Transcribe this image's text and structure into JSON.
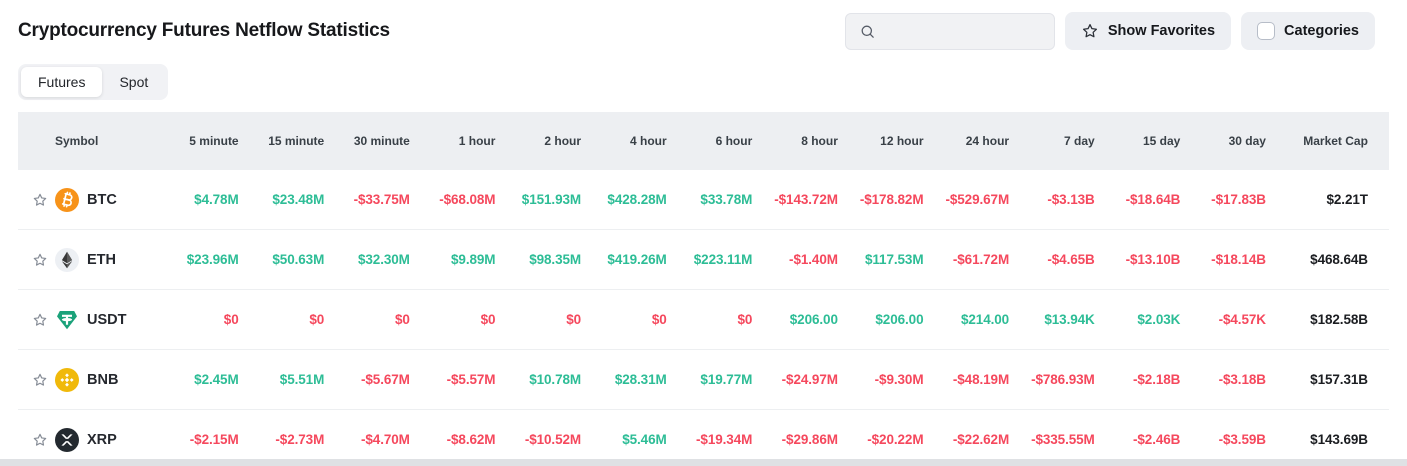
{
  "page": {
    "title": "Cryptocurrency Futures Netflow Statistics"
  },
  "toolbar": {
    "search_placeholder": "",
    "show_favorites_label": "Show Favorites",
    "categories_label": "Categories",
    "icons": [
      "search-icon",
      "star-icon",
      "checkbox"
    ]
  },
  "tabs": [
    {
      "label": "Futures",
      "active": true
    },
    {
      "label": "Spot",
      "active": false
    }
  ],
  "table": {
    "columns": [
      "Symbol",
      "5 minute",
      "15 minute",
      "30 minute",
      "1 hour",
      "2 hour",
      "4 hour",
      "6 hour",
      "8 hour",
      "12 hour",
      "24 hour",
      "7 day",
      "15 day",
      "30 day",
      "Market Cap"
    ],
    "rows": [
      {
        "symbol": "BTC",
        "icon": "btc-icon",
        "cells": [
          {
            "text": "$4.78M",
            "dir": "up"
          },
          {
            "text": "$23.48M",
            "dir": "up"
          },
          {
            "text": "-$33.75M",
            "dir": "down"
          },
          {
            "text": "-$68.08M",
            "dir": "down"
          },
          {
            "text": "$151.93M",
            "dir": "up"
          },
          {
            "text": "$428.28M",
            "dir": "up"
          },
          {
            "text": "$33.78M",
            "dir": "up"
          },
          {
            "text": "-$143.72M",
            "dir": "down"
          },
          {
            "text": "-$178.82M",
            "dir": "down"
          },
          {
            "text": "-$529.67M",
            "dir": "down"
          },
          {
            "text": "-$3.13B",
            "dir": "down"
          },
          {
            "text": "-$18.64B",
            "dir": "down"
          },
          {
            "text": "-$17.83B",
            "dir": "down"
          }
        ],
        "market_cap": "$2.21T"
      },
      {
        "symbol": "ETH",
        "icon": "eth-icon",
        "cells": [
          {
            "text": "$23.96M",
            "dir": "up"
          },
          {
            "text": "$50.63M",
            "dir": "up"
          },
          {
            "text": "$32.30M",
            "dir": "up"
          },
          {
            "text": "$9.89M",
            "dir": "up"
          },
          {
            "text": "$98.35M",
            "dir": "up"
          },
          {
            "text": "$419.26M",
            "dir": "up"
          },
          {
            "text": "$223.11M",
            "dir": "up"
          },
          {
            "text": "-$1.40M",
            "dir": "down"
          },
          {
            "text": "$117.53M",
            "dir": "up"
          },
          {
            "text": "-$61.72M",
            "dir": "down"
          },
          {
            "text": "-$4.65B",
            "dir": "down"
          },
          {
            "text": "-$13.10B",
            "dir": "down"
          },
          {
            "text": "-$18.14B",
            "dir": "down"
          }
        ],
        "market_cap": "$468.64B"
      },
      {
        "symbol": "USDT",
        "icon": "usdt-icon",
        "cells": [
          {
            "text": "$0",
            "dir": "down"
          },
          {
            "text": "$0",
            "dir": "down"
          },
          {
            "text": "$0",
            "dir": "down"
          },
          {
            "text": "$0",
            "dir": "down"
          },
          {
            "text": "$0",
            "dir": "down"
          },
          {
            "text": "$0",
            "dir": "down"
          },
          {
            "text": "$0",
            "dir": "down"
          },
          {
            "text": "$206.00",
            "dir": "up"
          },
          {
            "text": "$206.00",
            "dir": "up"
          },
          {
            "text": "$214.00",
            "dir": "up"
          },
          {
            "text": "$13.94K",
            "dir": "up"
          },
          {
            "text": "$2.03K",
            "dir": "up"
          },
          {
            "text": "-$4.57K",
            "dir": "down"
          }
        ],
        "market_cap": "$182.58B"
      },
      {
        "symbol": "BNB",
        "icon": "bnb-icon",
        "cells": [
          {
            "text": "$2.45M",
            "dir": "up"
          },
          {
            "text": "$5.51M",
            "dir": "up"
          },
          {
            "text": "-$5.67M",
            "dir": "down"
          },
          {
            "text": "-$5.57M",
            "dir": "down"
          },
          {
            "text": "$10.78M",
            "dir": "up"
          },
          {
            "text": "$28.31M",
            "dir": "up"
          },
          {
            "text": "$19.77M",
            "dir": "up"
          },
          {
            "text": "-$24.97M",
            "dir": "down"
          },
          {
            "text": "-$9.30M",
            "dir": "down"
          },
          {
            "text": "-$48.19M",
            "dir": "down"
          },
          {
            "text": "-$786.93M",
            "dir": "down"
          },
          {
            "text": "-$2.18B",
            "dir": "down"
          },
          {
            "text": "-$3.18B",
            "dir": "down"
          }
        ],
        "market_cap": "$157.31B"
      },
      {
        "symbol": "XRP",
        "icon": "xrp-icon",
        "cells": [
          {
            "text": "-$2.15M",
            "dir": "down"
          },
          {
            "text": "-$2.73M",
            "dir": "down"
          },
          {
            "text": "-$4.70M",
            "dir": "down"
          },
          {
            "text": "-$8.62M",
            "dir": "down"
          },
          {
            "text": "-$10.52M",
            "dir": "down"
          },
          {
            "text": "$5.46M",
            "dir": "up"
          },
          {
            "text": "-$19.34M",
            "dir": "down"
          },
          {
            "text": "-$29.86M",
            "dir": "down"
          },
          {
            "text": "-$20.22M",
            "dir": "down"
          },
          {
            "text": "-$22.62M",
            "dir": "down"
          },
          {
            "text": "-$335.55M",
            "dir": "down"
          },
          {
            "text": "-$2.46B",
            "dir": "down"
          },
          {
            "text": "-$3.59B",
            "dir": "down"
          }
        ],
        "market_cap": "$143.69B"
      }
    ]
  },
  "colors": {
    "positive": "#2dbd96",
    "negative": "#f5485d",
    "btc": "#f7931a",
    "usdt": "#1ba27a",
    "bnb": "#f0b90b",
    "xrp": "#23292f",
    "header_bg": "#edeff2"
  }
}
